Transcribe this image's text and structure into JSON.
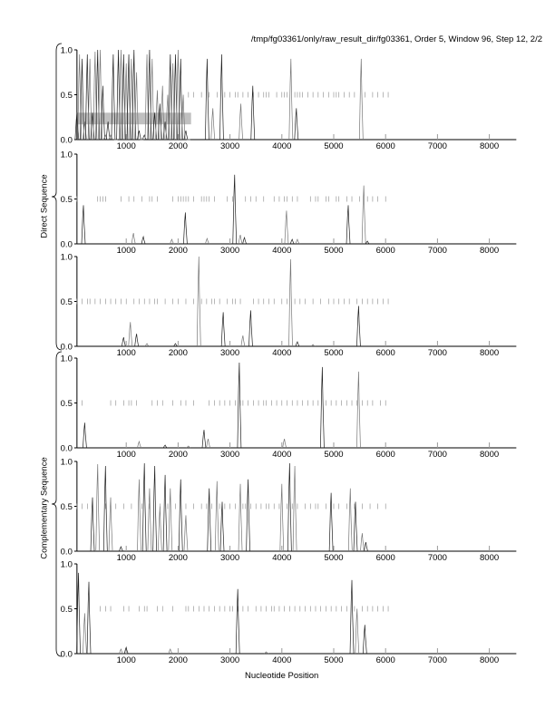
{
  "title": "/tmp/fg03361/only/raw_result_dir/fg03361, Order 5, Window 96, Step 12, 2/2",
  "chart_data": {
    "type": "line",
    "xlabel": "Nucleotide Position",
    "xlim": [
      50,
      8520
    ],
    "ylim": [
      0,
      1
    ],
    "xticks": [
      1000,
      2000,
      3000,
      4000,
      5000,
      6000,
      7000,
      8000
    ],
    "yticks": [
      "0.0",
      "0.5",
      "1.0"
    ],
    "groups": [
      {
        "label": "Direct Sequence",
        "panels": [
          0,
          1,
          2
        ]
      },
      {
        "label": "Complementary Sequence",
        "panels": [
          3,
          4,
          5
        ]
      }
    ],
    "panels": [
      {
        "peaks": [
          [
            50,
            0.3
          ],
          [
            100,
            0.95
          ],
          [
            150,
            0.9
          ],
          [
            200,
            0.2
          ],
          [
            250,
            0.95
          ],
          [
            300,
            0.9
          ],
          [
            350,
            0.3
          ],
          [
            400,
            0.98
          ],
          [
            450,
            1.0
          ],
          [
            500,
            1.0
          ],
          [
            550,
            0.6
          ],
          [
            600,
            0.05
          ],
          [
            650,
            0.2
          ],
          [
            700,
            0.05
          ],
          [
            750,
            0.95
          ],
          [
            800,
            0.0
          ],
          [
            850,
            1.0
          ],
          [
            900,
            1.0
          ],
          [
            950,
            0.95
          ],
          [
            1000,
            0.85
          ],
          [
            1050,
            0.95
          ],
          [
            1100,
            0.9
          ],
          [
            1150,
            1.0
          ],
          [
            1200,
            0.75
          ],
          [
            1250,
            0.1
          ],
          [
            1300,
            0.0
          ],
          [
            1350,
            0.05
          ],
          [
            1400,
            0.95
          ],
          [
            1450,
            1.0
          ],
          [
            1500,
            0.9
          ],
          [
            1550,
            0.3
          ],
          [
            1600,
            0.55
          ],
          [
            1650,
            0.4
          ],
          [
            1700,
            0.6
          ],
          [
            1750,
            0.2
          ],
          [
            1800,
            0.5
          ],
          [
            1850,
            0.95
          ],
          [
            1900,
            0.85
          ],
          [
            1950,
            0.95
          ],
          [
            2000,
            1.0
          ],
          [
            2050,
            0.9
          ],
          [
            2100,
            0.5
          ],
          [
            2150,
            0.1
          ],
          [
            2200,
            0.0
          ],
          [
            2560,
            0.9
          ],
          [
            2670,
            0.35
          ],
          [
            2840,
            0.95
          ],
          [
            3210,
            0.4
          ],
          [
            3440,
            0.6
          ],
          [
            4175,
            0.9
          ],
          [
            4280,
            0.35
          ],
          [
            5530,
            0.9
          ]
        ],
        "orf_ticks": [
          2200,
          2300,
          2450,
          2600,
          2750,
          2900,
          3000,
          3100,
          3150,
          3250,
          3350,
          3450,
          3550,
          3650,
          3700,
          3750,
          3900,
          4000,
          4050,
          4100,
          4250,
          4300,
          4350,
          4400,
          4500,
          4600,
          4700,
          4800,
          4900,
          5000,
          5050,
          5100,
          5200,
          5300,
          5400,
          5600,
          5750,
          5850,
          5950,
          6050
        ],
        "coding_region": [
          50,
          2250
        ]
      },
      {
        "peaks": [
          [
            175,
            0.43
          ],
          [
            1140,
            0.12
          ],
          [
            1330,
            0.08
          ],
          [
            1880,
            0.05
          ],
          [
            2140,
            0.35
          ],
          [
            2560,
            0.06
          ],
          [
            3090,
            0.77
          ],
          [
            3200,
            0.1
          ],
          [
            3280,
            0.07
          ],
          [
            4090,
            0.37
          ],
          [
            4200,
            0.05
          ],
          [
            4300,
            0.05
          ],
          [
            5280,
            0.43
          ],
          [
            5580,
            0.65
          ],
          [
            5650,
            0.03
          ]
        ],
        "orf_ticks": [
          50,
          450,
          500,
          550,
          600,
          900,
          1050,
          1150,
          1300,
          1450,
          1500,
          1600,
          1900,
          2000,
          2050,
          2100,
          2150,
          2200,
          2300,
          2450,
          2500,
          2550,
          2600,
          2700,
          2950,
          3050,
          3300,
          3400,
          3500,
          3650,
          3850,
          3950,
          4050,
          4100,
          4200,
          4300,
          4550,
          4650,
          4700,
          4850,
          4900,
          5050,
          5100,
          5250,
          5350,
          5500,
          5650,
          5750,
          5850,
          6000
        ]
      },
      {
        "peaks": [
          [
            950,
            0.1
          ],
          [
            1080,
            0.27
          ],
          [
            1200,
            0.14
          ],
          [
            1400,
            0.03
          ],
          [
            1950,
            0.03
          ],
          [
            2400,
            1.0
          ],
          [
            2870,
            0.38
          ],
          [
            3250,
            0.12
          ],
          [
            3400,
            0.4
          ],
          [
            4170,
            0.97
          ],
          [
            4300,
            0.05
          ],
          [
            4600,
            0.02
          ],
          [
            5480,
            0.45
          ]
        ],
        "orf_ticks": [
          50,
          150,
          250,
          300,
          400,
          500,
          600,
          700,
          800,
          900,
          1000,
          1150,
          1250,
          1350,
          1450,
          1550,
          1600,
          1750,
          1900,
          2000,
          2150,
          2300,
          2450,
          2550,
          2650,
          2700,
          2800,
          2950,
          3050,
          3100,
          3200,
          3450,
          3550,
          3650,
          3750,
          3850,
          4000,
          4100,
          4250,
          4350,
          4450,
          4600,
          4750,
          4900,
          5000,
          5100,
          5200,
          5300,
          5450,
          5550,
          5650,
          5750,
          5850,
          5950,
          6050
        ]
      },
      {
        "peaks": [
          [
            200,
            0.28
          ],
          [
            1250,
            0.07
          ],
          [
            1750,
            0.03
          ],
          [
            2200,
            0.02
          ],
          [
            2500,
            0.2
          ],
          [
            2580,
            0.1
          ],
          [
            3180,
            0.95
          ],
          [
            4050,
            0.1
          ],
          [
            4780,
            0.9
          ],
          [
            5480,
            0.85
          ]
        ],
        "orf_ticks": [
          150,
          700,
          800,
          950,
          1050,
          1100,
          1200,
          1500,
          1600,
          1700,
          1900,
          2050,
          2150,
          2300,
          2600,
          2700,
          2800,
          2900,
          3000,
          3100,
          3200,
          3250,
          3350,
          3450,
          3550,
          3650,
          3700,
          3800,
          3900,
          4000,
          4100,
          4200,
          4300,
          4400,
          4500,
          4600,
          4700,
          4850,
          4950,
          5050,
          5150,
          5250,
          5350,
          5450,
          5550,
          5650,
          5750,
          5900,
          6000
        ]
      },
      {
        "peaks": [
          [
            350,
            0.6
          ],
          [
            450,
            0.97
          ],
          [
            600,
            0.95
          ],
          [
            700,
            0.6
          ],
          [
            900,
            0.05
          ],
          [
            1250,
            0.8
          ],
          [
            1350,
            0.98
          ],
          [
            1450,
            0.7
          ],
          [
            1550,
            0.95
          ],
          [
            1650,
            0.5
          ],
          [
            1750,
            0.85
          ],
          [
            1850,
            0.7
          ],
          [
            2050,
            0.8
          ],
          [
            2150,
            0.4
          ],
          [
            2600,
            0.7
          ],
          [
            2750,
            0.78
          ],
          [
            2850,
            0.55
          ],
          [
            3200,
            0.75
          ],
          [
            3350,
            0.8
          ],
          [
            4000,
            0.75
          ],
          [
            4150,
            0.98
          ],
          [
            4250,
            0.95
          ],
          [
            4950,
            0.65
          ],
          [
            5320,
            0.7
          ],
          [
            5420,
            0.55
          ],
          [
            5550,
            0.2
          ],
          [
            5620,
            0.1
          ]
        ],
        "orf_ticks": [
          50,
          150,
          250,
          600,
          800,
          950,
          1100,
          1300,
          1450,
          1650,
          1800,
          1950,
          2150,
          2300,
          2450,
          2550,
          2650,
          2800,
          2900,
          3000,
          3100,
          3250,
          3300,
          3400,
          3500,
          3600,
          3700,
          3750,
          3850,
          3950,
          4100,
          4200,
          4300,
          4450,
          4550,
          4650,
          4700,
          4850,
          5000,
          5100,
          5250,
          5400,
          5550,
          5700,
          5850,
          6000
        ]
      },
      {
        "peaks": [
          [
            80,
            0.9
          ],
          [
            200,
            0.45
          ],
          [
            280,
            0.8
          ],
          [
            900,
            0.05
          ],
          [
            1000,
            0.07
          ],
          [
            1850,
            0.05
          ],
          [
            3150,
            0.72
          ],
          [
            3700,
            0.02
          ],
          [
            5350,
            0.82
          ],
          [
            5450,
            0.5
          ],
          [
            5600,
            0.32
          ]
        ],
        "orf_ticks": [
          500,
          600,
          700,
          950,
          1050,
          1250,
          1350,
          1400,
          1600,
          1700,
          1900,
          2150,
          2200,
          2300,
          2400,
          2500,
          2600,
          2700,
          2800,
          2900,
          3000,
          3050,
          3150,
          3250,
          3350,
          3500,
          3600,
          3700,
          3800,
          3850,
          3950,
          4050,
          4150,
          4250,
          4350,
          4450,
          4550,
          4650,
          4750,
          4850,
          4950,
          5050,
          5150,
          5250,
          5400,
          5550,
          5650,
          5750,
          5850,
          5950,
          6050
        ]
      }
    ]
  }
}
